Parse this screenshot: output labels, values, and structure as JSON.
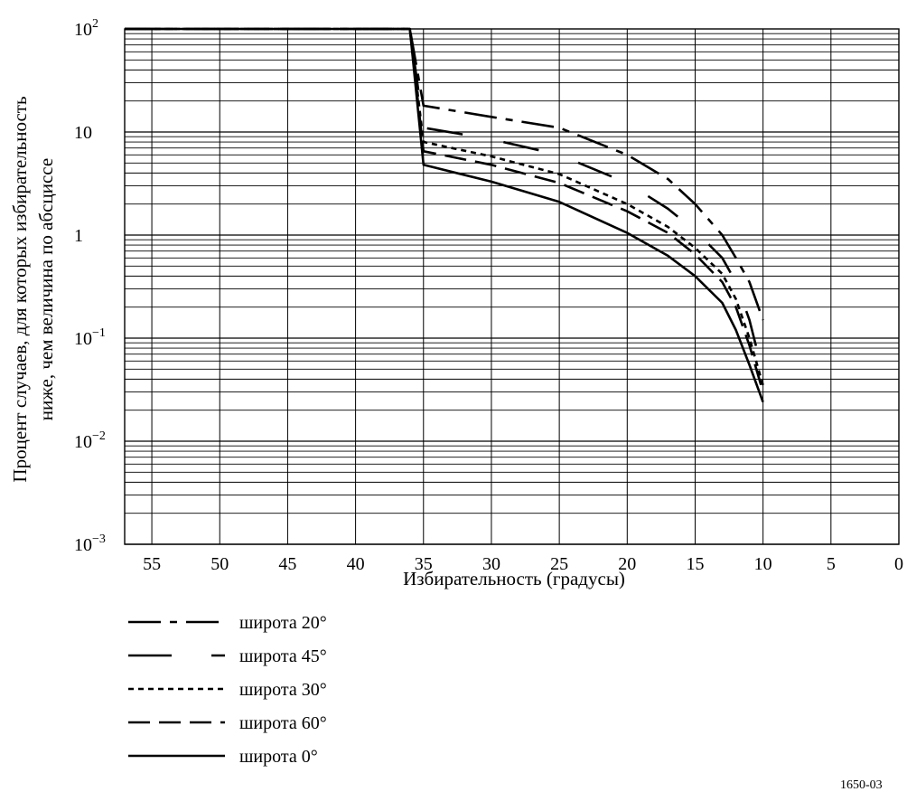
{
  "chart_data": {
    "type": "line",
    "title": "",
    "xlabel": "Избирательность (градусы)",
    "ylabel": [
      "Процент случаев, для которых избирательность",
      "ниже, чем величина по абсциссе"
    ],
    "xlim": [
      57,
      0
    ],
    "x_reversed": true,
    "ylim": [
      0.001,
      100
    ],
    "y_scale": "log",
    "grid": true,
    "legend_position": "bottom-left",
    "x_ticks": [
      55,
      50,
      45,
      40,
      35,
      30,
      25,
      20,
      15,
      10,
      5,
      0
    ],
    "y_ticks": [
      {
        "value": 100,
        "base": "10",
        "exp": "2"
      },
      {
        "value": 10,
        "base": "10",
        "exp": ""
      },
      {
        "value": 1,
        "base": "1",
        "exp": ""
      },
      {
        "value": 0.1,
        "base": "10",
        "exp": "−1"
      },
      {
        "value": 0.01,
        "base": "10",
        "exp": "−2"
      },
      {
        "value": 0.001,
        "base": "10",
        "exp": "−3"
      }
    ],
    "series": [
      {
        "name": "широта 20°",
        "dash": "dashdot",
        "points": [
          [
            57,
            100
          ],
          [
            36,
            100
          ],
          [
            35,
            18
          ],
          [
            30,
            14
          ],
          [
            25,
            11
          ],
          [
            20,
            6
          ],
          [
            17,
            3.5
          ],
          [
            15,
            2
          ],
          [
            13,
            1
          ],
          [
            12,
            0.6
          ],
          [
            11,
            0.35
          ],
          [
            10,
            0.15
          ]
        ]
      },
      {
        "name": "широта 45°",
        "dash": "longdash",
        "points": [
          [
            57,
            100
          ],
          [
            36,
            100
          ],
          [
            35,
            11
          ],
          [
            30,
            8.5
          ],
          [
            25,
            6
          ],
          [
            20,
            3.2
          ],
          [
            17,
            1.8
          ],
          [
            15,
            1.1
          ],
          [
            13,
            0.6
          ],
          [
            12,
            0.35
          ],
          [
            11,
            0.15
          ],
          [
            10,
            0.045
          ]
        ]
      },
      {
        "name": "широта 30°",
        "dash": "dotted",
        "points": [
          [
            57,
            100
          ],
          [
            36,
            100
          ],
          [
            35,
            8
          ],
          [
            30,
            5.8
          ],
          [
            25,
            3.9
          ],
          [
            20,
            2
          ],
          [
            17,
            1.2
          ],
          [
            15,
            0.75
          ],
          [
            13,
            0.42
          ],
          [
            12,
            0.24
          ],
          [
            11,
            0.1
          ],
          [
            10,
            0.035
          ]
        ]
      },
      {
        "name": "широта 60°",
        "dash": "dashed",
        "points": [
          [
            57,
            100
          ],
          [
            36,
            100
          ],
          [
            35,
            6.5
          ],
          [
            30,
            4.8
          ],
          [
            25,
            3.2
          ],
          [
            20,
            1.7
          ],
          [
            17,
            1.05
          ],
          [
            15,
            0.65
          ],
          [
            13,
            0.35
          ],
          [
            12,
            0.2
          ],
          [
            11,
            0.085
          ],
          [
            10,
            0.03
          ]
        ]
      },
      {
        "name": "широта 0°",
        "dash": "solid",
        "points": [
          [
            57,
            100
          ],
          [
            36,
            100
          ],
          [
            35,
            4.8
          ],
          [
            30,
            3.3
          ],
          [
            25,
            2.1
          ],
          [
            20,
            1.05
          ],
          [
            17,
            0.63
          ],
          [
            15,
            0.4
          ],
          [
            13,
            0.22
          ],
          [
            12,
            0.12
          ],
          [
            11,
            0.055
          ],
          [
            10,
            0.024
          ]
        ]
      }
    ]
  },
  "figure_id": "1650-03"
}
